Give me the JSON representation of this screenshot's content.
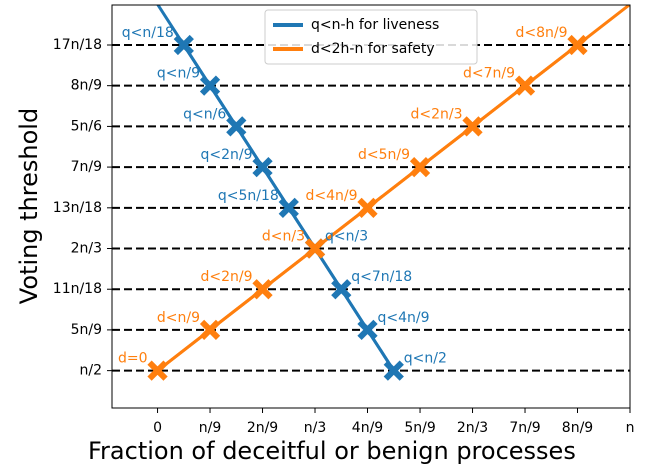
{
  "chart_data": {
    "type": "line",
    "xlabel": "Fraction of deceitful or benign processes",
    "ylabel": "Voting threshold",
    "xlim": [
      -0.0964,
      1.0
    ],
    "ylim": [
      0.449,
      0.999
    ],
    "xticks": [
      0,
      {
        "value": 0.1111,
        "label": "n/9"
      },
      {
        "value": 0.2222,
        "label": "2n/9"
      },
      {
        "value": 0.3333,
        "label": "n/3"
      },
      {
        "value": 0.4444,
        "label": "4n/9"
      },
      {
        "value": 0.5556,
        "label": "5n/9"
      },
      {
        "value": 0.6667,
        "label": "2n/3"
      },
      {
        "value": 0.7778,
        "label": "7n/9"
      },
      {
        "value": 0.8889,
        "label": "8n/9"
      },
      {
        "value": 1.0,
        "label": "n"
      }
    ],
    "yticks": [
      {
        "value": 0.5,
        "label": "n/2"
      },
      {
        "value": 0.5556,
        "label": "5n/9"
      },
      {
        "value": 0.6111,
        "label": "11n/18"
      },
      {
        "value": 0.6667,
        "label": "2n/3"
      },
      {
        "value": 0.7222,
        "label": "13n/18"
      },
      {
        "value": 0.7778,
        "label": "7n/9"
      },
      {
        "value": 0.8333,
        "label": "5n/6"
      },
      {
        "value": 0.8889,
        "label": "8n/9"
      },
      {
        "value": 0.9444,
        "label": "17n/18"
      }
    ],
    "grid": true,
    "legend": "upper center",
    "series": [
      {
        "name": "q<n-h for liveness",
        "color": "#1f77b4",
        "x": [
          0.0556,
          0.1111,
          0.1667,
          0.2222,
          0.2778,
          0.3333,
          0.3889,
          0.4444,
          0.5
        ],
        "values": [
          0.9444,
          0.8889,
          0.8333,
          0.7778,
          0.7222,
          0.6667,
          0.6111,
          0.5556,
          0.5
        ],
        "point_labels": [
          "q<n/18",
          "q<n/9",
          "q<n/6",
          "q<2n/9",
          "q<5n/18",
          "q<n/3",
          "q<7n/18",
          "q<4n/9",
          "q<n/2"
        ]
      },
      {
        "name": "d<2h-n for safety",
        "color": "#ff7f0e",
        "x": [
          0,
          0.1111,
          0.2222,
          0.3333,
          0.4444,
          0.5556,
          0.6667,
          0.7778,
          0.8889
        ],
        "values": [
          0.5,
          0.5556,
          0.6111,
          0.6667,
          0.7222,
          0.7778,
          0.8333,
          0.8889,
          0.9444
        ],
        "point_labels": [
          "d=0",
          "d<n/9",
          "d<2n/9",
          "d<n/3",
          "d<4n/9",
          "d<5n/9",
          "d<2n/3",
          "d<7n/9",
          "d<8n/9"
        ]
      }
    ]
  }
}
